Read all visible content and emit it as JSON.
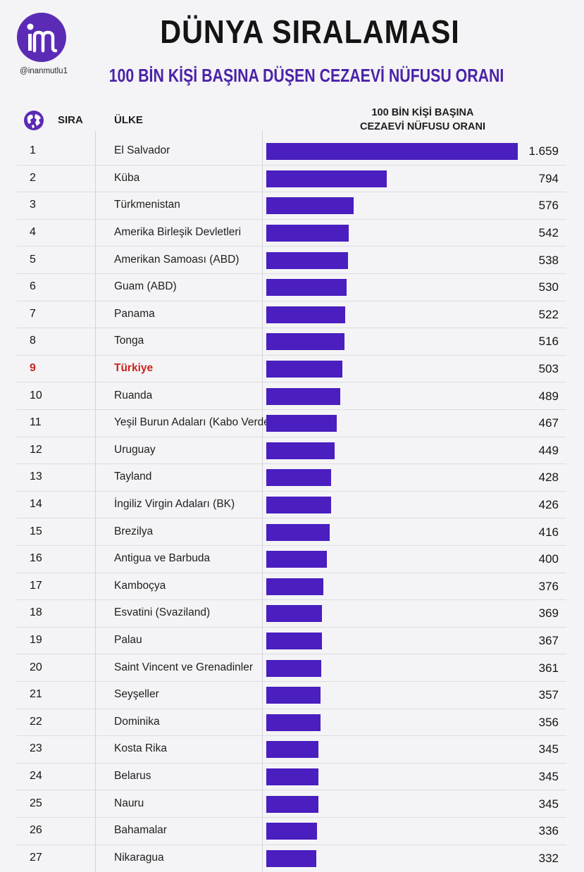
{
  "header": {
    "title": "DÜNYA SIRALAMASI",
    "subtitle": "100 BİN KİŞİ BAŞINA DÜŞEN CEZAEVİ NÜFUSU ORANI",
    "handle": "@inanmutlu1",
    "logo_icon": "in-monogram-logo"
  },
  "columns": {
    "rank": "SIRA",
    "country": "ÜLKE",
    "value_line1": "100 BİN KİŞİ BAŞINA",
    "value_line2": "CEZAEVİ NÜFUSU ORANI"
  },
  "colors": {
    "bar": "#4a1ebf",
    "accent": "#4b22a8",
    "highlight": "#c8251d",
    "logo": "#5b2bb5"
  },
  "highlight_country": "Türkiye",
  "chart_data": {
    "type": "bar",
    "orientation": "horizontal",
    "title": "100 BİN KİŞİ BAŞINA DÜŞEN CEZAEVİ NÜFUSU ORANI",
    "xlim": [
      0,
      1659
    ],
    "rows": [
      {
        "rank": "1",
        "country": "El Salvador",
        "value": 1659,
        "label": "1.659"
      },
      {
        "rank": "2",
        "country": "Küba",
        "value": 794,
        "label": "794"
      },
      {
        "rank": "3",
        "country": "Türkmenistan",
        "value": 576,
        "label": "576"
      },
      {
        "rank": "4",
        "country": "Amerika Birleşik Devletleri",
        "value": 542,
        "label": "542"
      },
      {
        "rank": "5",
        "country": "Amerikan Samoası (ABD)",
        "value": 538,
        "label": "538"
      },
      {
        "rank": "6",
        "country": "Guam (ABD)",
        "value": 530,
        "label": "530"
      },
      {
        "rank": "7",
        "country": "Panama",
        "value": 522,
        "label": "522"
      },
      {
        "rank": "8",
        "country": "Tonga",
        "value": 516,
        "label": "516"
      },
      {
        "rank": "9",
        "country": "Türkiye",
        "value": 503,
        "label": "503"
      },
      {
        "rank": "10",
        "country": "Ruanda",
        "value": 489,
        "label": "489"
      },
      {
        "rank": "11",
        "country": "Yeşil Burun Adaları (Kabo Verde)",
        "value": 467,
        "label": "467"
      },
      {
        "rank": "12",
        "country": "Uruguay",
        "value": 449,
        "label": "449"
      },
      {
        "rank": "13",
        "country": "Tayland",
        "value": 428,
        "label": "428"
      },
      {
        "rank": "14",
        "country": "İngiliz Virgin Adaları (BK)",
        "value": 426,
        "label": "426"
      },
      {
        "rank": "15",
        "country": "Brezilya",
        "value": 416,
        "label": "416"
      },
      {
        "rank": "16",
        "country": "Antigua ve Barbuda",
        "value": 400,
        "label": "400"
      },
      {
        "rank": "17",
        "country": "Kamboçya",
        "value": 376,
        "label": "376"
      },
      {
        "rank": "18",
        "country": "Esvatini (Svaziland)",
        "value": 369,
        "label": "369"
      },
      {
        "rank": "19",
        "country": "Palau",
        "value": 367,
        "label": "367"
      },
      {
        "rank": "20",
        "country": "Saint Vincent ve Grenadinler",
        "value": 361,
        "label": "361"
      },
      {
        "rank": "21",
        "country": "Seyşeller",
        "value": 357,
        "label": "357"
      },
      {
        "rank": "22",
        "country": "Dominika",
        "value": 356,
        "label": "356"
      },
      {
        "rank": "23",
        "country": "Kosta Rika",
        "value": 345,
        "label": "345"
      },
      {
        "rank": "24",
        "country": "Belarus",
        "value": 345,
        "label": "345"
      },
      {
        "rank": "25",
        "country": "Nauru",
        "value": 345,
        "label": "345"
      },
      {
        "rank": "26",
        "country": "Bahamalar",
        "value": 336,
        "label": "336"
      },
      {
        "rank": "27",
        "country": "Nikaragua",
        "value": 332,
        "label": "332"
      }
    ]
  }
}
